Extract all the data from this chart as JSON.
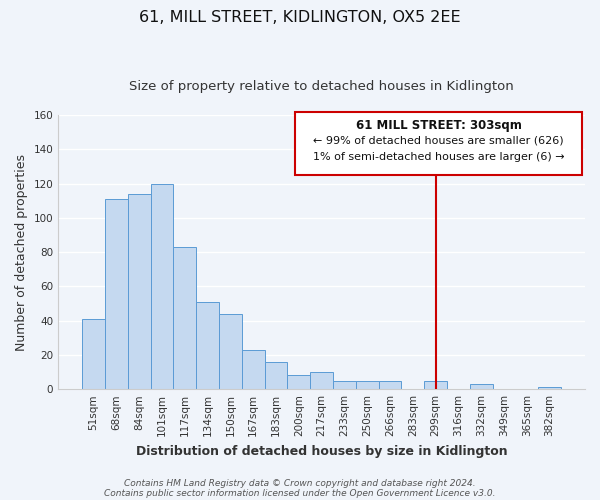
{
  "title": "61, MILL STREET, KIDLINGTON, OX5 2EE",
  "subtitle": "Size of property relative to detached houses in Kidlington",
  "xlabel": "Distribution of detached houses by size in Kidlington",
  "ylabel": "Number of detached properties",
  "bar_labels": [
    "51sqm",
    "68sqm",
    "84sqm",
    "101sqm",
    "117sqm",
    "134sqm",
    "150sqm",
    "167sqm",
    "183sqm",
    "200sqm",
    "217sqm",
    "233sqm",
    "250sqm",
    "266sqm",
    "283sqm",
    "299sqm",
    "316sqm",
    "332sqm",
    "349sqm",
    "365sqm",
    "382sqm"
  ],
  "bar_values": [
    41,
    111,
    114,
    120,
    83,
    51,
    44,
    23,
    16,
    8,
    10,
    5,
    5,
    5,
    0,
    5,
    0,
    3,
    0,
    0,
    1
  ],
  "bar_color": "#c5d9f0",
  "bar_edge_color": "#5b9bd5",
  "vline_x": 15,
  "vline_color": "#cc0000",
  "ylim": [
    0,
    160
  ],
  "yticks": [
    0,
    20,
    40,
    60,
    80,
    100,
    120,
    140,
    160
  ],
  "annotation_title": "61 MILL STREET: 303sqm",
  "annotation_line1": "← 99% of detached houses are smaller (626)",
  "annotation_line2": "1% of semi-detached houses are larger (6) →",
  "annotation_box_color": "#cc0000",
  "footer_line1": "Contains HM Land Registry data © Crown copyright and database right 2024.",
  "footer_line2": "Contains public sector information licensed under the Open Government Licence v3.0.",
  "background_color": "#f0f4fa",
  "grid_color": "#ffffff",
  "title_fontsize": 11.5,
  "subtitle_fontsize": 9.5,
  "axis_label_fontsize": 9,
  "tick_fontsize": 7.5,
  "footer_fontsize": 6.5,
  "ann_title_fontsize": 8.5,
  "ann_text_fontsize": 8.0
}
